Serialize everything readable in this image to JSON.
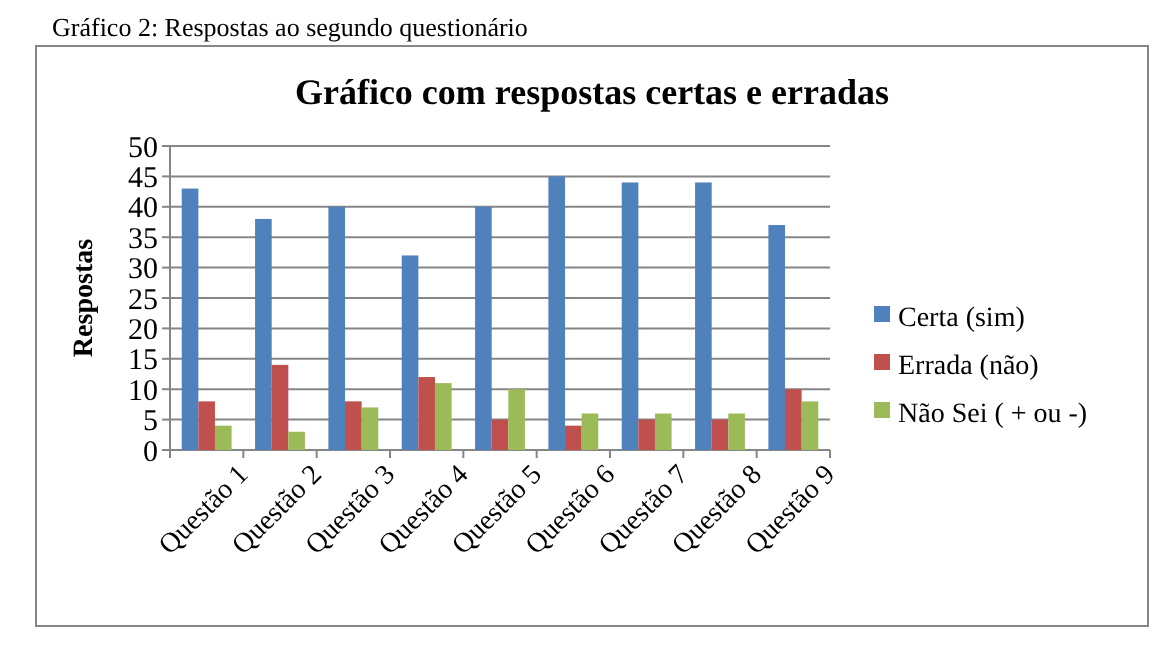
{
  "chart_data": {
    "type": "bar",
    "title": "Gráfico com respostas certas e erradas",
    "ylabel": "Respostas",
    "annotations": [
      "Gráfico 2: Respostas ao segundo questionário"
    ],
    "categories": [
      "Questão 1",
      "Questão 2",
      "Questão 3",
      "Questão 4",
      "Questão 5",
      "Questão 6",
      "Questão 7",
      "Questão 8",
      "Questão 9"
    ],
    "series": [
      {
        "name": "Certa (sim)",
        "color": "#4f81bd",
        "values": [
          43,
          38,
          40,
          32,
          40,
          45,
          44,
          44,
          37
        ]
      },
      {
        "name": "Errada (não)",
        "color": "#c0504d",
        "values": [
          8,
          14,
          8,
          12,
          5,
          4,
          5,
          5,
          10
        ]
      },
      {
        "name": "Não Sei ( + ou -)",
        "color": "#9bbb59",
        "values": [
          4,
          3,
          7,
          11,
          10,
          6,
          6,
          6,
          8
        ]
      }
    ],
    "ylim": [
      0,
      50
    ],
    "yticks": [
      0,
      5,
      10,
      15,
      20,
      25,
      30,
      35,
      40,
      45,
      50
    ],
    "grid": "y",
    "legend": "right"
  }
}
